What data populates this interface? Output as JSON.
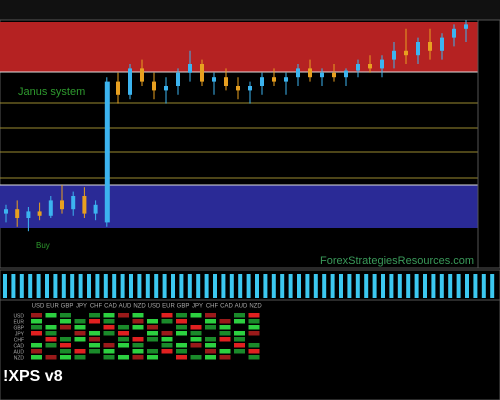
{
  "chart_data": {
    "type": "candlestick",
    "annotations": [
      "Janus system",
      "Buy",
      "ForexStrategiesResources.com"
    ],
    "up_color": "#3cb4f0",
    "down_color": "#e8a020",
    "ylim": [
      0,
      100
    ],
    "open": [
      12,
      14,
      10,
      13,
      11,
      18,
      14,
      20,
      12,
      8,
      72,
      66,
      78,
      72,
      68,
      70,
      76,
      80,
      72,
      74,
      70,
      68,
      70,
      74,
      72,
      74,
      78,
      74,
      76,
      74,
      77,
      80,
      78,
      82,
      86,
      84,
      90,
      86,
      92,
      96
    ],
    "high": [
      16,
      18,
      15,
      17,
      20,
      25,
      22,
      24,
      18,
      74,
      76,
      80,
      82,
      76,
      74,
      78,
      86,
      82,
      76,
      78,
      74,
      72,
      76,
      78,
      76,
      80,
      82,
      78,
      80,
      78,
      82,
      84,
      84,
      90,
      96,
      92,
      96,
      94,
      98,
      100
    ],
    "low": [
      8,
      6,
      4,
      9,
      10,
      12,
      11,
      10,
      9,
      6,
      62,
      64,
      70,
      64,
      62,
      66,
      72,
      70,
      66,
      68,
      64,
      62,
      66,
      70,
      66,
      70,
      72,
      70,
      72,
      70,
      74,
      76,
      74,
      78,
      80,
      80,
      82,
      82,
      88,
      90
    ],
    "close": [
      14,
      10,
      13,
      11,
      18,
      14,
      20,
      12,
      16,
      72,
      66,
      78,
      72,
      68,
      70,
      76,
      80,
      72,
      74,
      70,
      68,
      70,
      74,
      72,
      74,
      78,
      74,
      76,
      74,
      77,
      80,
      78,
      82,
      86,
      84,
      90,
      86,
      92,
      96,
      98
    ]
  },
  "heatmap": {
    "columns": [
      "USD",
      "EUR",
      "GBP",
      "JPY",
      "CHF",
      "CAD",
      "AUD",
      "NZD",
      "USD",
      "EUR",
      "GBP",
      "JPY",
      "CHF",
      "CAD",
      "AUD",
      "NZD"
    ],
    "rows": [
      "USD",
      "EUR",
      "GBP",
      "JPY",
      "CHF",
      "CAD",
      "AUD",
      "NZD"
    ]
  },
  "logo": "!XPS v8"
}
